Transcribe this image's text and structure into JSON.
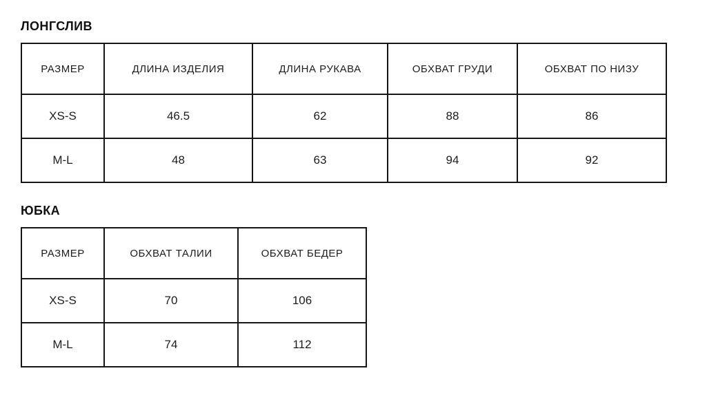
{
  "colors": {
    "background": "#ffffff",
    "text": "#1c1c1c",
    "border": "#141414"
  },
  "chart_data": [
    {
      "type": "table",
      "title": "ЛОНГСЛИВ",
      "columns": [
        "РАЗМЕР",
        "ДЛИНА ИЗДЕЛИЯ",
        "ДЛИНА РУКАВА",
        "ОБХВАТ ГРУДИ",
        "ОБХВАТ ПО НИЗУ"
      ],
      "rows": [
        [
          "XS-S",
          "46.5",
          "62",
          "88",
          "86"
        ],
        [
          "M-L",
          "48",
          "63",
          "94",
          "92"
        ]
      ]
    },
    {
      "type": "table",
      "title": "ЮБКА",
      "columns": [
        "РАЗМЕР",
        "ОБХВАТ ТАЛИИ",
        "ОБХВАТ БЕДЕР"
      ],
      "rows": [
        [
          "XS-S",
          "70",
          "106"
        ],
        [
          "M-L",
          "74",
          "112"
        ]
      ]
    }
  ]
}
